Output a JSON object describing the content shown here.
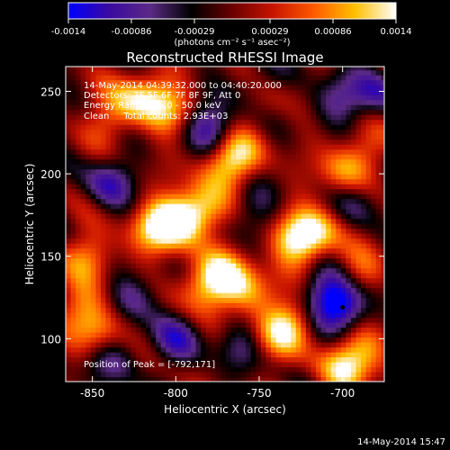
{
  "colorbar": {
    "tick_labels": [
      "-0.0014",
      "-0.00086",
      "-0.00029",
      "0.00029",
      "0.00086",
      "0.0014"
    ],
    "range": [
      -0.0014,
      0.0014
    ],
    "units_label": "(photons cm⁻² s⁻¹ asec⁻²)",
    "colors": [
      "#0000ff",
      "#3a0aa0",
      "#5b2a86",
      "#000000",
      "#6a0000",
      "#c81400",
      "#ff5a00",
      "#ffc000",
      "#ffffff"
    ]
  },
  "image_info": {
    "time_range": "14-May-2014 04:39:32.000 to 04:40:20.000",
    "detectors": "Detectors: 3F 5F 6F 7F 8F 9F, Att 0",
    "energy_range": "Energy Range: 25.0 - 50.0 keV",
    "clean_total": "Clean     Total counts: 2.93E+03",
    "peak": "Position of Peak = [-792,171]"
  },
  "footer_timestamp": "14-May-2014 15:47",
  "chart_data": {
    "type": "heatmap",
    "title": "Reconstructed RHESSI Image",
    "xlabel": "Heliocentric X (arcsec)",
    "ylabel": "Heliocentric Y (arcsec)",
    "xlim": [
      -866,
      -675
    ],
    "ylim": [
      74,
      265
    ],
    "x_ticks": [
      -850,
      -800,
      -750,
      -700
    ],
    "y_ticks": [
      100,
      150,
      200,
      250
    ],
    "peak": [
      -792,
      171
    ],
    "marker": [
      -700,
      119
    ],
    "value_range": [
      -0.0014,
      0.0014
    ],
    "grid": false,
    "blobs": [
      {
        "x": -800,
        "y": 172,
        "v": 0.0014
      },
      {
        "x": -785,
        "y": 178,
        "v": 0.0011
      },
      {
        "x": -815,
        "y": 165,
        "v": 0.0009
      },
      {
        "x": -820,
        "y": 248,
        "v": 0.001
      },
      {
        "x": -805,
        "y": 240,
        "v": 0.00085
      },
      {
        "x": -838,
        "y": 235,
        "v": 0.0007
      },
      {
        "x": -762,
        "y": 212,
        "v": 0.0009
      },
      {
        "x": -772,
        "y": 205,
        "v": 0.0008
      },
      {
        "x": -770,
        "y": 138,
        "v": 0.0011
      },
      {
        "x": -785,
        "y": 132,
        "v": 0.0009
      },
      {
        "x": -755,
        "y": 128,
        "v": 0.0008
      },
      {
        "x": -728,
        "y": 160,
        "v": 0.0012
      },
      {
        "x": -715,
        "y": 165,
        "v": 0.0009
      },
      {
        "x": -700,
        "y": 200,
        "v": 0.0008
      },
      {
        "x": -688,
        "y": 215,
        "v": 0.0006
      },
      {
        "x": -852,
        "y": 150,
        "v": 0.0008
      },
      {
        "x": -845,
        "y": 105,
        "v": 0.0009
      },
      {
        "x": -855,
        "y": 120,
        "v": 0.0007
      },
      {
        "x": -740,
        "y": 102,
        "v": 0.0009
      },
      {
        "x": -728,
        "y": 112,
        "v": 0.0007
      },
      {
        "x": -700,
        "y": 82,
        "v": 0.0011
      },
      {
        "x": -684,
        "y": 95,
        "v": 0.0008
      },
      {
        "x": -690,
        "y": 140,
        "v": 0.0006
      },
      {
        "x": -748,
        "y": 245,
        "v": 0.0005
      },
      {
        "x": -700,
        "y": 119,
        "v": -0.0014
      },
      {
        "x": -710,
        "y": 128,
        "v": -0.0009
      },
      {
        "x": -778,
        "y": 228,
        "v": -0.0011
      },
      {
        "x": -750,
        "y": 255,
        "v": -0.0006
      },
      {
        "x": -840,
        "y": 195,
        "v": -0.0009
      },
      {
        "x": -825,
        "y": 125,
        "v": -0.0008
      },
      {
        "x": -838,
        "y": 88,
        "v": -0.0007
      },
      {
        "x": -800,
        "y": 100,
        "v": -0.0008
      },
      {
        "x": -680,
        "y": 250,
        "v": -0.0009
      },
      {
        "x": -705,
        "y": 245,
        "v": -0.0007
      },
      {
        "x": -690,
        "y": 185,
        "v": -0.0006
      },
      {
        "x": -755,
        "y": 180,
        "v": -0.0005
      },
      {
        "x": -762,
        "y": 95,
        "v": -0.0006
      }
    ]
  }
}
